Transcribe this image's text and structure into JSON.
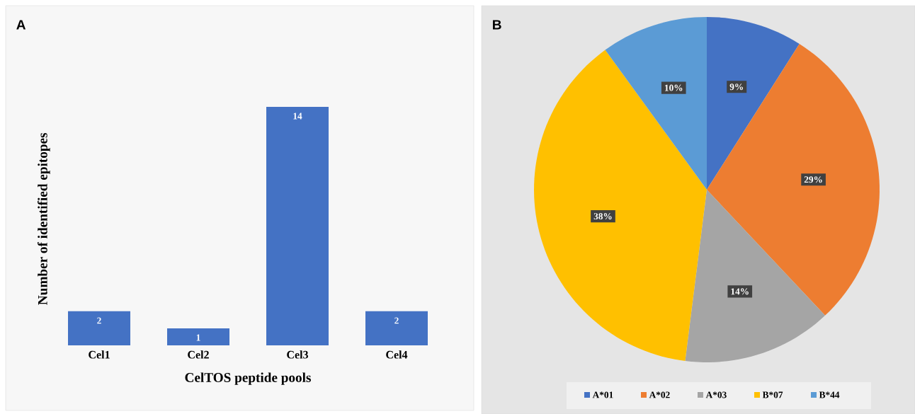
{
  "chart_data": [
    {
      "type": "bar",
      "title": "A",
      "xlabel": "CelTOS peptide pools",
      "ylabel": "Number of identified epitopes",
      "categories": [
        "Cel1",
        "Cel2",
        "Cel3",
        "Cel4"
      ],
      "values": [
        2,
        1,
        14,
        2
      ],
      "color": "#4472c4",
      "data_labels": true
    },
    {
      "type": "pie",
      "title": "B",
      "categories": [
        "A*01",
        "A*02",
        "A*03",
        "B*07",
        "B*44"
      ],
      "values": [
        9,
        29,
        14,
        38,
        10
      ],
      "colors": [
        "#4472c4",
        "#ed7d31",
        "#a5a5a5",
        "#ffc000",
        "#5b9bd5"
      ],
      "value_labels": [
        "9%",
        "29%",
        "14%",
        "38%",
        "10%"
      ],
      "legend": "bottom"
    }
  ]
}
